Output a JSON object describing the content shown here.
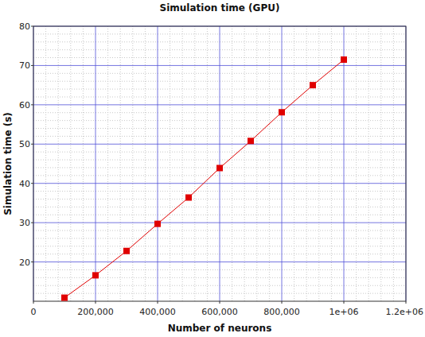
{
  "chart_data": {
    "type": "line",
    "title": "Simulation time (GPU)",
    "x_label": "Number of neurons",
    "y_label": "Simulation time (s)",
    "x": [
      100000,
      200000,
      300000,
      400000,
      500000,
      600000,
      700000,
      800000,
      900000,
      1000000
    ],
    "series": [
      {
        "name": "Simulation time",
        "color": "#e00000",
        "marker": "square",
        "line_style": "solid",
        "values": [
          10.9,
          16.6,
          22.8,
          29.7,
          36.4,
          43.9,
          50.8,
          58.1,
          65.0,
          71.5
        ]
      }
    ],
    "xlim": [
      0,
      1200000
    ],
    "xticks": [
      0,
      {
        "value": 200000,
        "label": "200,000"
      },
      {
        "value": 400000,
        "label": "400,000"
      },
      {
        "value": 600000,
        "label": "600,000"
      },
      {
        "value": 800000,
        "label": "800,000"
      },
      {
        "value": 1000000,
        "label": "1e+06"
      },
      {
        "value": 1200000,
        "label": "1.2e+06"
      }
    ],
    "ylim": [
      10,
      80
    ],
    "yticks": [
      20,
      30,
      40,
      50,
      60,
      70,
      80
    ],
    "grid": true
  }
}
